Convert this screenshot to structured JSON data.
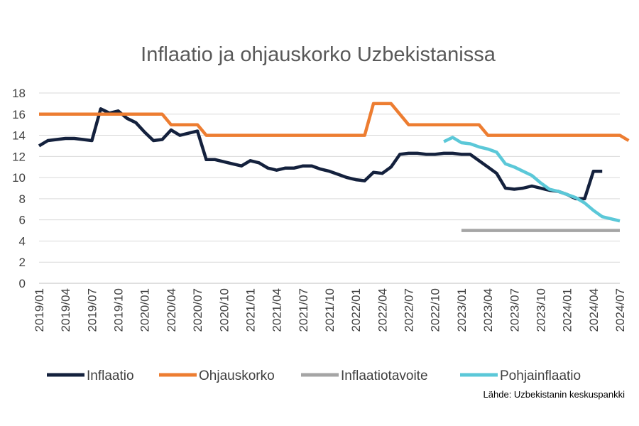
{
  "chart_data": {
    "type": "line",
    "title": "Inflaatio ja ohjauskorko Uzbekistanissa",
    "source": "Lähde: Uzbekistanin keskuspankki",
    "xlabel": "",
    "ylabel": "",
    "ylim": [
      0,
      18
    ],
    "yticks": [
      0,
      2,
      4,
      6,
      8,
      10,
      12,
      14,
      16,
      18
    ],
    "x_start": "2019-01",
    "x_end": "2024-07",
    "xticks": [
      "2019/01",
      "2019/04",
      "2019/07",
      "2019/10",
      "2020/01",
      "2020/04",
      "2020/07",
      "2020/10",
      "2021/01",
      "2021/04",
      "2021/07",
      "2021/10",
      "2022/01",
      "2022/04",
      "2022/07",
      "2022/10",
      "2023/01",
      "2023/04",
      "2023/07",
      "2023/10",
      "2024/01",
      "2024/04",
      "2024/07"
    ],
    "grid": true,
    "legend_position": "bottom",
    "series": [
      {
        "name": "Inflaatio",
        "color": "#14213d",
        "start": "2019-01",
        "values": [
          13.0,
          13.5,
          13.6,
          13.7,
          13.7,
          13.6,
          13.5,
          16.5,
          16.1,
          16.3,
          15.6,
          15.2,
          14.3,
          13.5,
          13.6,
          14.5,
          14.0,
          14.2,
          14.4,
          11.7,
          11.7,
          11.5,
          11.3,
          11.1,
          11.6,
          11.4,
          10.9,
          10.7,
          10.9,
          10.9,
          11.1,
          11.1,
          10.8,
          10.6,
          10.3,
          10.0,
          9.8,
          9.7,
          10.5,
          10.4,
          11.0,
          12.2,
          12.3,
          12.3,
          12.2,
          12.2,
          12.3,
          12.3,
          12.2,
          12.2,
          11.6,
          11.0,
          10.4,
          9.0,
          8.9,
          9.0,
          9.2,
          9.0,
          8.8,
          8.7,
          8.4,
          8.0,
          8.0,
          10.6,
          10.6
        ]
      },
      {
        "name": "Ohjauskorko",
        "color": "#ed7d31",
        "start": "2019-01",
        "values": [
          16,
          16,
          16,
          16,
          16,
          16,
          16,
          16,
          16,
          16,
          16,
          16,
          16,
          16,
          16,
          15,
          15,
          15,
          15,
          14,
          14,
          14,
          14,
          14,
          14,
          14,
          14,
          14,
          14,
          14,
          14,
          14,
          14,
          14,
          14,
          14,
          14,
          14,
          17,
          17,
          17,
          16,
          15,
          15,
          15,
          15,
          15,
          15,
          15,
          15,
          15,
          14,
          14,
          14,
          14,
          14,
          14,
          14,
          14,
          14,
          14,
          14,
          14,
          14,
          14,
          14,
          14,
          13.5
        ]
      },
      {
        "name": "Inflaatiotavoite",
        "color": "#a5a5a5",
        "start": "2023-01",
        "values": [
          5,
          5,
          5,
          5,
          5,
          5,
          5,
          5,
          5,
          5,
          5,
          5,
          5,
          5,
          5,
          5,
          5,
          5,
          5
        ]
      },
      {
        "name": "Pohjainflaatio",
        "color": "#5bc8d8",
        "start": "2022-11",
        "values": [
          13.4,
          13.8,
          13.3,
          13.2,
          12.9,
          12.7,
          12.4,
          11.3,
          11.0,
          10.6,
          10.2,
          9.5,
          8.9,
          8.7,
          8.4,
          8.1,
          7.6,
          6.9,
          6.3,
          6.1,
          5.9
        ]
      }
    ]
  }
}
